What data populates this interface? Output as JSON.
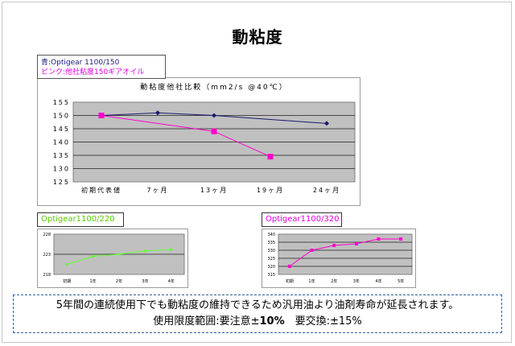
{
  "page": {
    "title": "動粘度",
    "legend_line1": "青:Optigear 1100/150",
    "legend_line2": "ピンク:他社粘度150ギアオイル",
    "note_line1": "5年間の連続使用下でも動粘度の維持できるため汎用油より油剤寿命が延長されます。",
    "note_line2_a": "使用限度範囲:要注意±",
    "note_line2_b": "10%",
    "note_line2_c": "　要交換:±15%"
  },
  "colors": {
    "blue": "#1a1a6e",
    "magenta": "#ff00cc",
    "green": "#66ff33",
    "plot_bg": "#c0c0c0"
  },
  "chart_data": [
    {
      "type": "line",
      "title": "動粘度他社比較（mm2/s @40℃）",
      "categories": [
        "初期代表値",
        "7ヶ月",
        "13ヶ月",
        "19ヶ月",
        "24ヶ月"
      ],
      "ylim": [
        125,
        155
      ],
      "yticks": [
        "155",
        "150",
        "145",
        "140",
        "135",
        "130",
        "125"
      ],
      "grid": true,
      "series": [
        {
          "name": "Optigear 1100/150",
          "color": "#1a1a6e",
          "values": [
            150,
            151,
            150,
            null,
            147
          ]
        },
        {
          "name": "他社粘度150ギアオイル",
          "color": "#ff00cc",
          "values": [
            150,
            null,
            144,
            134.5,
            null
          ]
        }
      ]
    },
    {
      "type": "line",
      "title": "Optigear1100/220",
      "categories": [
        "初期",
        "1年",
        "2年",
        "3年",
        "4年"
      ],
      "ylim": [
        218,
        228
      ],
      "yticks": [
        "228",
        "223",
        "218"
      ],
      "grid": true,
      "series": [
        {
          "color": "#66ff33",
          "values": [
            220.5,
            222.5,
            223,
            223.8,
            224.2
          ]
        }
      ]
    },
    {
      "type": "line",
      "title": "Optigear1100/320",
      "categories": [
        "初期",
        "1年",
        "2年",
        "3年",
        "4年",
        "5年"
      ],
      "ylim": [
        315,
        340
      ],
      "yticks": [
        "340",
        "335",
        "330",
        "325",
        "320",
        "315"
      ],
      "grid": true,
      "series": [
        {
          "color": "#ff00cc",
          "values": [
            320,
            330,
            333,
            334,
            337,
            337
          ]
        }
      ]
    }
  ]
}
